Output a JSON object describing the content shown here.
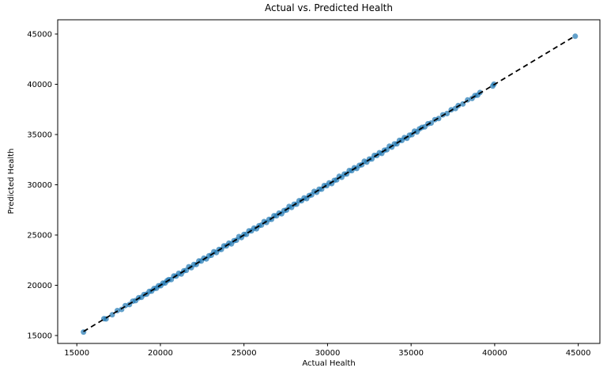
{
  "chart_data": {
    "type": "scatter",
    "title": "Actual vs. Predicted Health",
    "xlabel": "Actual Health",
    "ylabel": "Predicted Health",
    "xlim": [
      13856,
      46294
    ],
    "ylim": [
      14213,
      46417
    ],
    "x_ticks": [
      15000,
      20000,
      25000,
      30000,
      35000,
      40000,
      45000
    ],
    "y_ticks": [
      15000,
      20000,
      25000,
      30000,
      35000,
      40000,
      45000
    ],
    "grid": false,
    "legend": false,
    "point_color": "#1f77b4",
    "point_alpha": 0.7,
    "axis_color": "#000000",
    "reference_line": {
      "style": "dashed",
      "color": "#000000",
      "from": [
        15400,
        15400
      ],
      "to": [
        44820,
        44820
      ]
    },
    "series": [
      {
        "name": "predicted-vs-actual",
        "points": [
          [
            15400,
            15350
          ],
          [
            16620,
            16680
          ],
          [
            16750,
            16650
          ],
          [
            17120,
            17060
          ],
          [
            17420,
            17480
          ],
          [
            17680,
            17600
          ],
          [
            17900,
            17980
          ],
          [
            18150,
            18080
          ],
          [
            18350,
            18420
          ],
          [
            18520,
            18470
          ],
          [
            18700,
            18760
          ],
          [
            18870,
            18800
          ],
          [
            19020,
            19080
          ],
          [
            19180,
            19120
          ],
          [
            19330,
            19390
          ],
          [
            19480,
            19420
          ],
          [
            19620,
            19680
          ],
          [
            19760,
            19700
          ],
          [
            19890,
            19950
          ],
          [
            20020,
            19960
          ],
          [
            20150,
            20210
          ],
          [
            20280,
            20220
          ],
          [
            20400,
            20460
          ],
          [
            20500,
            20560
          ],
          [
            20650,
            20570
          ],
          [
            20800,
            20920
          ],
          [
            20950,
            20910
          ],
          [
            21100,
            21190
          ],
          [
            21250,
            21120
          ],
          [
            21400,
            21430
          ],
          [
            21550,
            21490
          ],
          [
            21700,
            21840
          ],
          [
            21850,
            21750
          ],
          [
            22000,
            22060
          ],
          [
            22150,
            22070
          ],
          [
            22300,
            22420
          ],
          [
            22450,
            22410
          ],
          [
            22600,
            22690
          ],
          [
            22750,
            22620
          ],
          [
            22900,
            22930
          ],
          [
            23050,
            22990
          ],
          [
            23200,
            23340
          ],
          [
            23350,
            23250
          ],
          [
            23500,
            23560
          ],
          [
            23650,
            23570
          ],
          [
            23800,
            23920
          ],
          [
            23950,
            23910
          ],
          [
            24100,
            24190
          ],
          [
            24250,
            24120
          ],
          [
            24400,
            24430
          ],
          [
            24550,
            24490
          ],
          [
            24700,
            24840
          ],
          [
            24850,
            24750
          ],
          [
            25000,
            25060
          ],
          [
            25150,
            25070
          ],
          [
            25300,
            25420
          ],
          [
            25450,
            25410
          ],
          [
            25600,
            25690
          ],
          [
            25750,
            25620
          ],
          [
            25900,
            25930
          ],
          [
            26050,
            25990
          ],
          [
            26200,
            26340
          ],
          [
            26350,
            26250
          ],
          [
            26500,
            26560
          ],
          [
            26650,
            26570
          ],
          [
            26800,
            26920
          ],
          [
            26950,
            26910
          ],
          [
            27100,
            27190
          ],
          [
            27250,
            27120
          ],
          [
            27400,
            27430
          ],
          [
            27550,
            27490
          ],
          [
            27700,
            27840
          ],
          [
            27850,
            27750
          ],
          [
            28000,
            28060
          ],
          [
            28150,
            28070
          ],
          [
            28300,
            28420
          ],
          [
            28450,
            28410
          ],
          [
            28600,
            28690
          ],
          [
            28750,
            28620
          ],
          [
            28900,
            28930
          ],
          [
            29050,
            28990
          ],
          [
            29200,
            29340
          ],
          [
            29350,
            29250
          ],
          [
            29500,
            29560
          ],
          [
            29650,
            29570
          ],
          [
            29800,
            29920
          ],
          [
            29950,
            29910
          ],
          [
            30100,
            30190
          ],
          [
            30250,
            30120
          ],
          [
            30400,
            30430
          ],
          [
            30550,
            30490
          ],
          [
            30700,
            30840
          ],
          [
            30850,
            30750
          ],
          [
            31000,
            31060
          ],
          [
            31150,
            31070
          ],
          [
            31300,
            31420
          ],
          [
            31450,
            31410
          ],
          [
            31600,
            31690
          ],
          [
            31750,
            31620
          ],
          [
            31900,
            31930
          ],
          [
            32050,
            31990
          ],
          [
            32200,
            32340
          ],
          [
            32350,
            32250
          ],
          [
            32500,
            32560
          ],
          [
            32650,
            32570
          ],
          [
            32800,
            32920
          ],
          [
            32950,
            32910
          ],
          [
            33100,
            33190
          ],
          [
            33250,
            33120
          ],
          [
            33400,
            33430
          ],
          [
            33550,
            33490
          ],
          [
            33700,
            33840
          ],
          [
            33850,
            33750
          ],
          [
            34000,
            34060
          ],
          [
            34150,
            34070
          ],
          [
            34300,
            34420
          ],
          [
            34450,
            34410
          ],
          [
            34600,
            34690
          ],
          [
            34750,
            34620
          ],
          [
            34900,
            34930
          ],
          [
            35050,
            34990
          ],
          [
            35200,
            35340
          ],
          [
            35350,
            35250
          ],
          [
            35500,
            35560
          ],
          [
            35650,
            35710
          ],
          [
            35820,
            35760
          ],
          [
            36010,
            36070
          ],
          [
            36200,
            36140
          ],
          [
            36420,
            36480
          ],
          [
            36650,
            36590
          ],
          [
            36900,
            36960
          ],
          [
            37150,
            37090
          ],
          [
            37400,
            37460
          ],
          [
            37650,
            37590
          ],
          [
            37820,
            37880
          ],
          [
            38100,
            38040
          ],
          [
            38380,
            38440
          ],
          [
            38650,
            38590
          ],
          [
            38820,
            38880
          ],
          [
            38980,
            38920
          ],
          [
            39120,
            39180
          ],
          [
            39880,
            39820
          ],
          [
            39960,
            40010
          ],
          [
            44820,
            44780
          ]
        ]
      }
    ]
  }
}
